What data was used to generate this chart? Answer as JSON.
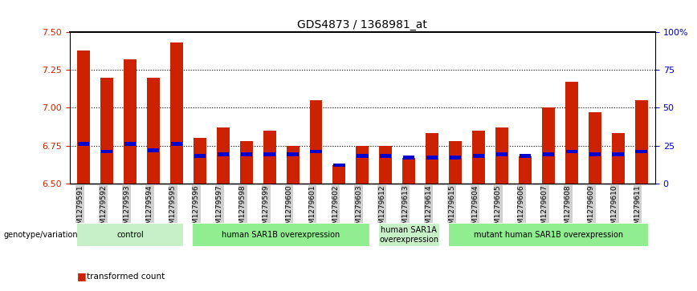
{
  "title": "GDS4873 / 1368981_at",
  "samples": [
    "GSM1279591",
    "GSM1279592",
    "GSM1279593",
    "GSM1279594",
    "GSM1279595",
    "GSM1279596",
    "GSM1279597",
    "GSM1279598",
    "GSM1279599",
    "GSM1279600",
    "GSM1279601",
    "GSM1279602",
    "GSM1279603",
    "GSM1279612",
    "GSM1279613",
    "GSM1279614",
    "GSM1279615",
    "GSM1279604",
    "GSM1279605",
    "GSM1279606",
    "GSM1279607",
    "GSM1279608",
    "GSM1279609",
    "GSM1279610",
    "GSM1279611"
  ],
  "transformed_counts": [
    7.38,
    7.2,
    7.32,
    7.2,
    7.43,
    6.8,
    6.87,
    6.78,
    6.85,
    6.75,
    7.05,
    6.62,
    6.75,
    6.75,
    6.67,
    6.83,
    6.78,
    6.85,
    6.87,
    6.68,
    7.0,
    7.17,
    6.97,
    6.83,
    7.05
  ],
  "percentile_ranks": [
    6.76,
    6.71,
    6.76,
    6.72,
    6.76,
    6.68,
    6.69,
    6.69,
    6.69,
    6.69,
    6.71,
    6.62,
    6.68,
    6.68,
    6.67,
    6.67,
    6.67,
    6.68,
    6.69,
    6.68,
    6.69,
    6.71,
    6.69,
    6.69,
    6.71
  ],
  "ylim": [
    6.5,
    7.5
  ],
  "yticks": [
    6.5,
    6.75,
    7.0,
    7.25,
    7.5
  ],
  "right_yticks": [
    0,
    25,
    50,
    75,
    100
  ],
  "groups": [
    {
      "label": "control",
      "start": 0,
      "end": 4,
      "color": "#c8f0c8"
    },
    {
      "label": "human SAR1B overexpression",
      "start": 5,
      "end": 12,
      "color": "#90ee90"
    },
    {
      "label": "human SAR1A\noverexpression",
      "start": 13,
      "end": 15,
      "color": "#c8f0c8"
    },
    {
      "label": "mutant human SAR1B overexpression",
      "start": 16,
      "end": 24,
      "color": "#90ee90"
    }
  ],
  "bar_color": "#cc2200",
  "marker_color": "#0000cc",
  "base": 6.5,
  "xlabel_color": "#cc2200",
  "ylabel_right_color": "#0000cc",
  "tick_label_bg": "#d0d0d0",
  "grid_color": "#000000"
}
